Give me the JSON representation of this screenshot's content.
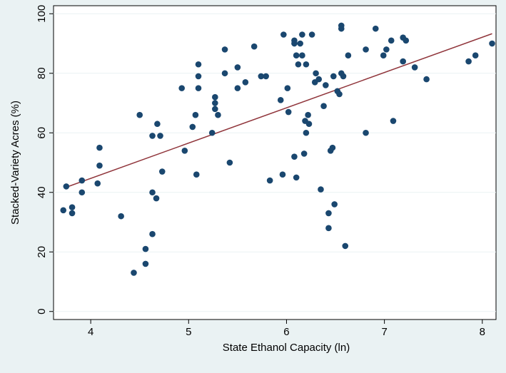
{
  "chart_data": {
    "type": "scatter",
    "xlabel": "State Ethanol Capacity (ln)",
    "ylabel": "Stacked-Variety Acres (%)",
    "xlim": [
      3.62,
      8.14
    ],
    "xticks": [
      4,
      5,
      6,
      7,
      8
    ],
    "ylim": [
      -2.7,
      102.7
    ],
    "yticks": [
      0,
      20,
      40,
      60,
      80,
      100
    ],
    "grid": true,
    "series": [
      {
        "type": "scatter",
        "color": "#1a476f",
        "x": [
          3.72,
          3.75,
          3.81,
          3.81,
          3.91,
          3.91,
          4.09,
          4.09,
          4.07,
          4.31,
          4.44,
          4.5,
          4.56,
          4.56,
          4.63,
          4.63,
          4.63,
          4.67,
          4.68,
          4.71,
          4.73,
          4.93,
          4.96,
          5.04,
          5.07,
          5.08,
          5.1,
          5.1,
          5.1,
          5.24,
          5.27,
          5.27,
          5.27,
          5.3,
          5.37,
          5.37,
          5.42,
          5.5,
          5.5,
          5.58,
          5.67,
          5.74,
          5.79,
          5.83,
          5.94,
          5.96,
          5.97,
          6.01,
          6.02,
          6.08,
          6.08,
          6.08,
          6.1,
          6.12,
          6.14,
          6.16,
          6.16,
          6.18,
          6.19,
          6.2,
          6.22,
          6.23,
          6.2,
          6.1,
          6.26,
          6.29,
          6.3,
          6.33,
          6.35,
          6.38,
          6.4,
          6.43,
          6.43,
          6.45,
          6.47,
          6.48,
          6.49,
          6.52,
          6.54,
          6.56,
          6.56,
          6.56,
          6.58,
          6.6,
          6.63,
          6.81,
          6.81,
          6.91,
          6.99,
          7.02,
          7.07,
          7.09,
          7.19,
          7.22,
          7.19,
          7.31,
          7.43,
          7.86,
          7.93,
          8.1
        ],
        "values": [
          34,
          42,
          35,
          33,
          44,
          40,
          49,
          55,
          43,
          32,
          13,
          66,
          21,
          16,
          59,
          40,
          26,
          38,
          63,
          59,
          47,
          75,
          54,
          62,
          66,
          46,
          83,
          79,
          75,
          60,
          72,
          70,
          68,
          66,
          88,
          80,
          50,
          82,
          75,
          77,
          89,
          79,
          79,
          44,
          71,
          46,
          93,
          75,
          67,
          52,
          91,
          90,
          45,
          83,
          90,
          86,
          93,
          53,
          64,
          60,
          66,
          63,
          83,
          86,
          93,
          77,
          80,
          78,
          41,
          69,
          76,
          33,
          28,
          54,
          55,
          79,
          36,
          74,
          73,
          96,
          95,
          80,
          79,
          22,
          86,
          60,
          88,
          95,
          86,
          88,
          91,
          64,
          92,
          91,
          84,
          82,
          78,
          84,
          86,
          90
        ]
      },
      {
        "type": "line",
        "color": "#90353b",
        "x": [
          3.73,
          8.1
        ],
        "values": [
          41.5,
          93.3
        ]
      }
    ]
  }
}
